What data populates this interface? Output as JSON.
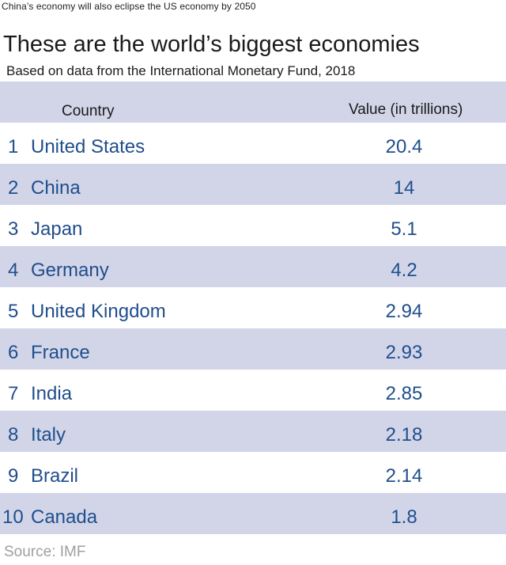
{
  "kicker": "China’s economy will also eclipse the US economy by 2050",
  "title": "These are the world’s biggest economies",
  "subtitle": "Based on data from the International Monetary Fund, 2018",
  "source": "Source: IMF",
  "colors": {
    "band": "#d2d5e8",
    "value_text": "#1f4e8c",
    "source_text": "#a0a0a0"
  },
  "chart_data": {
    "type": "table",
    "title": "These are the world’s biggest economies",
    "subtitle": "Based on data from the International Monetary Fund, 2018",
    "columns": [
      "Country",
      "Value (in trillions)"
    ],
    "rows": [
      {
        "rank": "1",
        "country": "United States",
        "value": "20.4"
      },
      {
        "rank": "2",
        "country": "China",
        "value": "14"
      },
      {
        "rank": "3",
        "country": "Japan",
        "value": "5.1"
      },
      {
        "rank": "4",
        "country": "Germany",
        "value": "4.2"
      },
      {
        "rank": "5",
        "country": "United Kingdom",
        "value": "2.94"
      },
      {
        "rank": "6",
        "country": "France",
        "value": "2.93"
      },
      {
        "rank": "7",
        "country": "India",
        "value": "2.85"
      },
      {
        "rank": "8",
        "country": "Italy",
        "value": "2.18"
      },
      {
        "rank": "9",
        "country": "Brazil",
        "value": "2.14"
      },
      {
        "rank": "10",
        "country": "Canada",
        "value": "1.8"
      }
    ]
  }
}
